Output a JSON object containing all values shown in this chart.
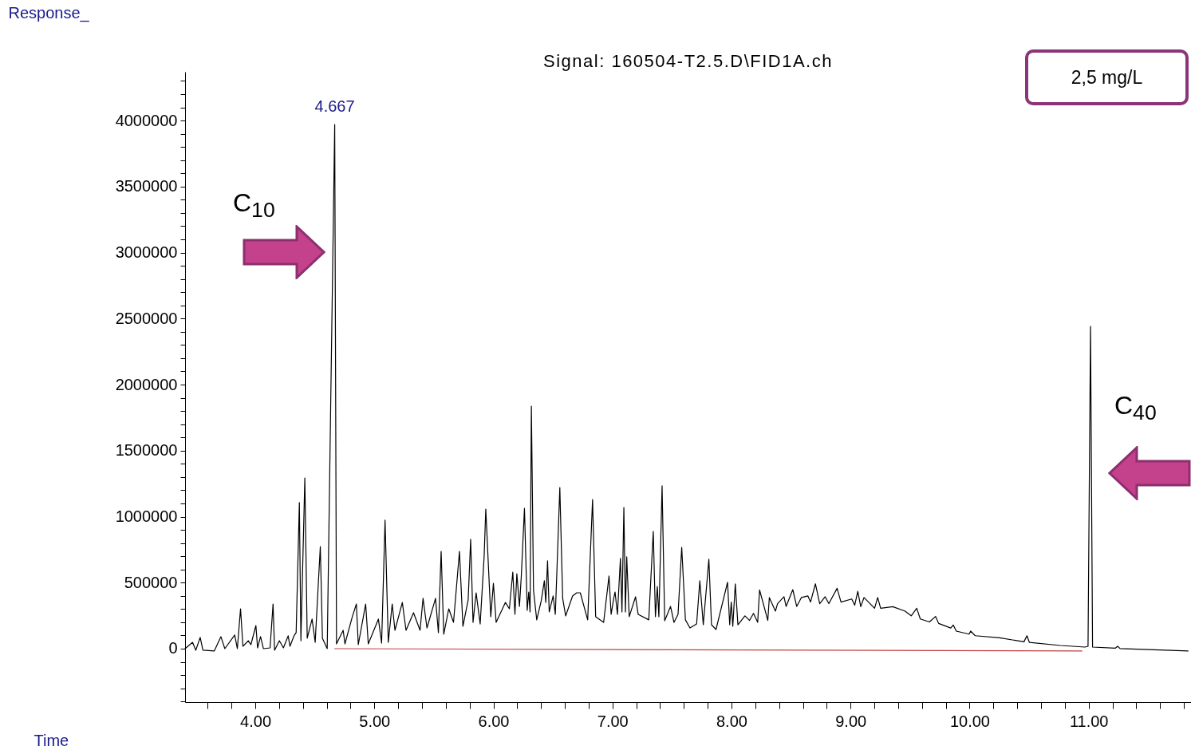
{
  "chart_data": {
    "type": "line",
    "title": "Signal: 160504-T2.5.D\\FID1A.ch",
    "xlabel": "Time",
    "ylabel": "Response_",
    "xlim": [
      3.41,
      11.86
    ],
    "ylim": [
      -405000,
      4369000
    ],
    "xticks": [
      {
        "value": 3.6,
        "label": null
      },
      {
        "value": 3.8,
        "label": null
      },
      {
        "value": 4,
        "label": "4.00"
      },
      {
        "value": 4.2,
        "label": null
      },
      {
        "value": 4.4,
        "label": null
      },
      {
        "value": 4.6,
        "label": null
      },
      {
        "value": 4.8,
        "label": null
      },
      {
        "value": 5,
        "label": "5.00"
      },
      {
        "value": 5.2,
        "label": null
      },
      {
        "value": 5.4,
        "label": null
      },
      {
        "value": 5.6,
        "label": null
      },
      {
        "value": 5.8,
        "label": null
      },
      {
        "value": 6,
        "label": "6.00"
      },
      {
        "value": 6.2,
        "label": null
      },
      {
        "value": 6.4,
        "label": null
      },
      {
        "value": 6.6,
        "label": null
      },
      {
        "value": 6.8,
        "label": null
      },
      {
        "value": 7,
        "label": "7.00"
      },
      {
        "value": 7.2,
        "label": null
      },
      {
        "value": 7.4,
        "label": null
      },
      {
        "value": 7.6,
        "label": null
      },
      {
        "value": 7.8,
        "label": null
      },
      {
        "value": 8,
        "label": "8.00"
      },
      {
        "value": 8.2,
        "label": null
      },
      {
        "value": 8.4,
        "label": null
      },
      {
        "value": 8.6,
        "label": null
      },
      {
        "value": 8.8,
        "label": null
      },
      {
        "value": 9,
        "label": "9.00"
      },
      {
        "value": 9.2,
        "label": null
      },
      {
        "value": 9.4,
        "label": null
      },
      {
        "value": 9.6,
        "label": null
      },
      {
        "value": 9.8,
        "label": null
      },
      {
        "value": 10,
        "label": "10.00"
      },
      {
        "value": 10.2,
        "label": null
      },
      {
        "value": 10.4,
        "label": null
      },
      {
        "value": 10.6,
        "label": null
      },
      {
        "value": 10.8,
        "label": null
      },
      {
        "value": 11,
        "label": "11.00"
      },
      {
        "value": 11.2,
        "label": null
      },
      {
        "value": 11.4,
        "label": null
      },
      {
        "value": 11.6,
        "label": null
      },
      {
        "value": 11.8,
        "label": null
      }
    ],
    "yticks": [
      {
        "value": -400000,
        "label": null
      },
      {
        "value": -300000,
        "label": null
      },
      {
        "value": -200000,
        "label": null
      },
      {
        "value": -100000,
        "label": null
      },
      0,
      {
        "value": 100000,
        "label": null
      },
      {
        "value": 200000,
        "label": null
      },
      {
        "value": 300000,
        "label": null
      },
      {
        "value": 400000,
        "label": null
      },
      500000,
      {
        "value": 600000,
        "label": null
      },
      {
        "value": 700000,
        "label": null
      },
      {
        "value": 800000,
        "label": null
      },
      {
        "value": 900000,
        "label": null
      },
      1000000,
      {
        "value": 1100000,
        "label": null
      },
      {
        "value": 1200000,
        "label": null
      },
      {
        "value": 1300000,
        "label": null
      },
      {
        "value": 1400000,
        "label": null
      },
      1500000,
      {
        "value": 1600000,
        "label": null
      },
      {
        "value": 1700000,
        "label": null
      },
      {
        "value": 1800000,
        "label": null
      },
      {
        "value": 1900000,
        "label": null
      },
      2000000,
      {
        "value": 2100000,
        "label": null
      },
      {
        "value": 2200000,
        "label": null
      },
      {
        "value": 2300000,
        "label": null
      },
      {
        "value": 2400000,
        "label": null
      },
      2500000,
      {
        "value": 2600000,
        "label": null
      },
      {
        "value": 2700000,
        "label": null
      },
      {
        "value": 2800000,
        "label": null
      },
      {
        "value": 2900000,
        "label": null
      },
      3000000,
      {
        "value": 3100000,
        "label": null
      },
      {
        "value": 3200000,
        "label": null
      },
      {
        "value": 3300000,
        "label": null
      },
      {
        "value": 3400000,
        "label": null
      },
      3500000,
      {
        "value": 3600000,
        "label": null
      },
      {
        "value": 3700000,
        "label": null
      },
      {
        "value": 3800000,
        "label": null
      },
      {
        "value": 3900000,
        "label": null
      },
      4000000,
      {
        "value": 4100000,
        "label": null
      },
      {
        "value": 4200000,
        "label": null
      },
      {
        "value": 4300000,
        "label": null
      }
    ],
    "series": [
      {
        "color": "#000000",
        "x": [
          3.41,
          3.473,
          3.5,
          3.537,
          3.56,
          3.655,
          3.711,
          3.744,
          3.827,
          3.849,
          3.876,
          3.896,
          3.941,
          3.963,
          4.005,
          4.019,
          4.044,
          4.068,
          4.124,
          4.149,
          4.162,
          4.202,
          4.236,
          4.276,
          4.291,
          4.325,
          4.343,
          4.37,
          4.383,
          4.416,
          4.436,
          4.477,
          4.503,
          4.546,
          4.564,
          4.604,
          4.667,
          4.682,
          4.738,
          4.753,
          4.815,
          4.849,
          4.865,
          4.927,
          4.949,
          5.034,
          5.061,
          5.09,
          5.117,
          5.15,
          5.173,
          5.235,
          5.266,
          5.329,
          5.384,
          5.409,
          5.442,
          5.514,
          5.538,
          5.561,
          5.583,
          5.625,
          5.665,
          5.715,
          5.744,
          5.788,
          5.809,
          5.829,
          5.855,
          5.889,
          5.922,
          5.936,
          5.978,
          6.0,
          6.023,
          6.101,
          6.134,
          6.163,
          6.181,
          6.197,
          6.219,
          6.234,
          6.261,
          6.284,
          6.297,
          6.308,
          6.319,
          6.337,
          6.364,
          6.402,
          6.428,
          6.44,
          6.455,
          6.469,
          6.502,
          6.52,
          6.533,
          6.558,
          6.582,
          6.607,
          6.665,
          6.699,
          6.73,
          6.792,
          6.833,
          6.859,
          6.926,
          6.971,
          6.989,
          7.011,
          7.022,
          7.042,
          7.067,
          7.08,
          7.096,
          7.109,
          7.12,
          7.141,
          7.194,
          7.216,
          7.305,
          7.343,
          7.361,
          7.377,
          7.39,
          7.417,
          7.439,
          7.488,
          7.517,
          7.551,
          7.582,
          7.613,
          7.651,
          7.707,
          7.734,
          7.763,
          7.81,
          7.832,
          7.87,
          7.967,
          7.985,
          7.998,
          8.011,
          8.032,
          8.054,
          8.113,
          8.152,
          8.185,
          8.22,
          8.236,
          8.305,
          8.318,
          8.369,
          8.387,
          8.441,
          8.459,
          8.515,
          8.548,
          8.587,
          8.642,
          8.664,
          8.705,
          8.741,
          8.787,
          8.818,
          8.887,
          8.92,
          9.01,
          9.035,
          9.061,
          9.086,
          9.113,
          9.202,
          9.228,
          9.253,
          9.355,
          9.458,
          9.51,
          9.556,
          9.586,
          9.663,
          9.714,
          9.74,
          9.842,
          9.863,
          9.888,
          9.996,
          10.009,
          10.047,
          10.252,
          10.457,
          10.482,
          10.502,
          10.763,
          10.969,
          10.995,
          11.016,
          11.033,
          11.225,
          11.244,
          11.264,
          11.835
        ],
        "values": [
          0,
          48000,
          -12000,
          85000,
          -12000,
          -18000,
          91000,
          0,
          103000,
          0,
          302000,
          18000,
          60000,
          30000,
          175000,
          6000,
          91000,
          0,
          6000,
          338000,
          -12000,
          60000,
          6000,
          97000,
          18000,
          97000,
          121000,
          1106000,
          60000,
          1293000,
          79000,
          224000,
          48000,
          773000,
          79000,
          0,
          3970000,
          36000,
          139000,
          36000,
          242000,
          338000,
          30000,
          338000,
          36000,
          224000,
          42000,
          973000,
          48000,
          338000,
          139000,
          350000,
          139000,
          272000,
          139000,
          381000,
          157000,
          381000,
          121000,
          737000,
          109000,
          302000,
          199000,
          737000,
          169000,
          369000,
          828000,
          199000,
          423000,
          187000,
          695000,
          1057000,
          242000,
          495000,
          199000,
          350000,
          302000,
          580000,
          260000,
          568000,
          320000,
          544000,
          1063000,
          290000,
          429000,
          278000,
          1837000,
          441000,
          218000,
          363000,
          514000,
          350000,
          665000,
          278000,
          399000,
          260000,
          574000,
          1220000,
          381000,
          248000,
          399000,
          423000,
          423000,
          218000,
          1130000,
          242000,
          199000,
          550000,
          260000,
          381000,
          429000,
          260000,
          683000,
          278000,
          1069000,
          278000,
          695000,
          242000,
          393000,
          260000,
          218000,
          888000,
          242000,
          471000,
          242000,
          1233000,
          211000,
          320000,
          199000,
          260000,
          767000,
          218000,
          157000,
          187000,
          514000,
          181000,
          677000,
          181000,
          145000,
          503000,
          181000,
          353000,
          169000,
          491000,
          181000,
          248000,
          214000,
          267000,
          199000,
          445000,
          214000,
          387000,
          284000,
          341000,
          393000,
          320000,
          447000,
          320000,
          387000,
          399000,
          353000,
          491000,
          341000,
          393000,
          341000,
          457000,
          353000,
          376000,
          329000,
          434000,
          318000,
          387000,
          306000,
          387000,
          306000,
          318000,
          284000,
          249000,
          306000,
          225000,
          202000,
          244000,
          191000,
          156000,
          179000,
          133000,
          110000,
          133000,
          98000,
          82000,
          52000,
          98000,
          48000,
          24000,
          12000,
          18000,
          2441000,
          12000,
          4000,
          18000,
          1000,
          -18000
        ]
      },
      {
        "color": "#c04040",
        "x": [
          4.667,
          10.944
        ],
        "values": [
          0,
          -18000
        ]
      }
    ],
    "annotations": [
      {
        "text": "4.667",
        "x": 4.667,
        "y": 3970000
      },
      "C$_{10}$",
      "C$_{40}$",
      "2,5 mg/L"
    ]
  }
}
